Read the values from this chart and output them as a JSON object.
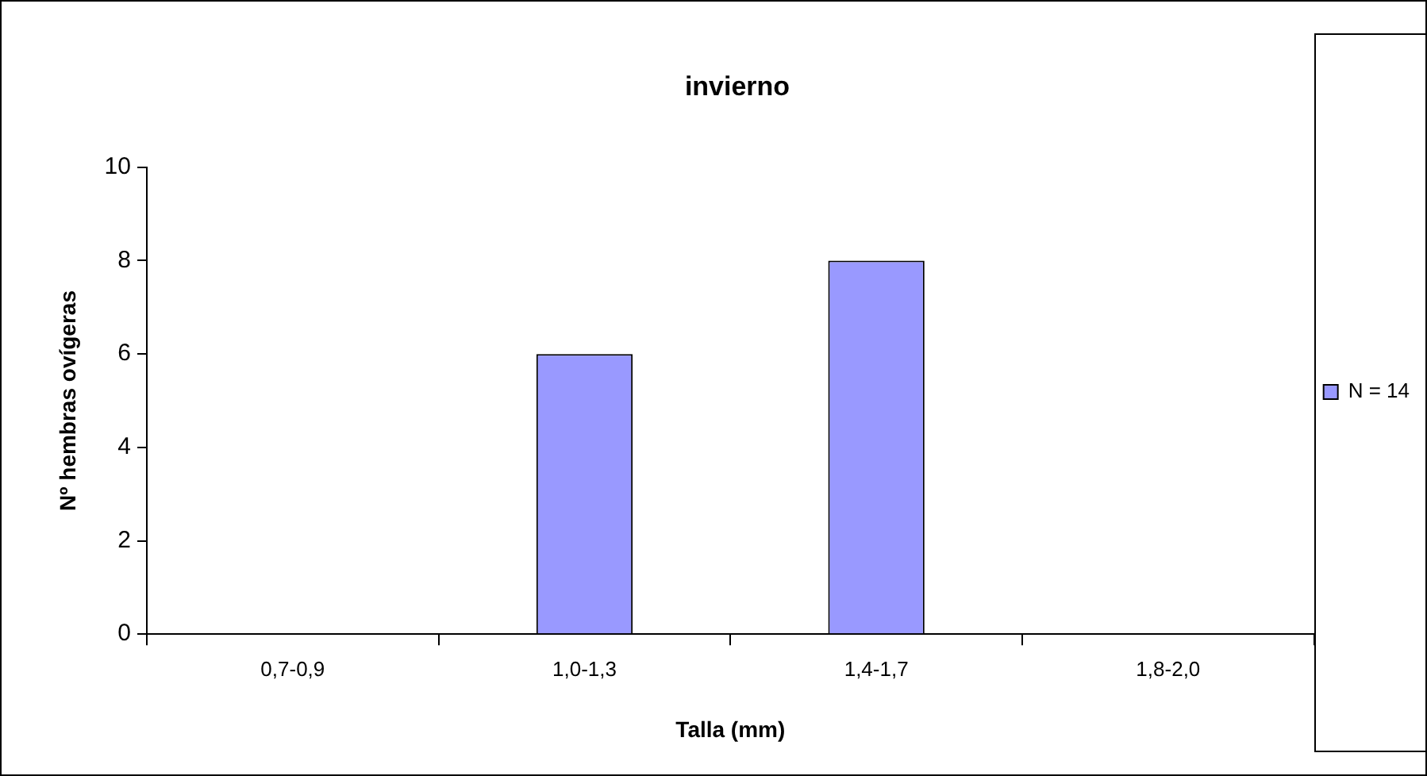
{
  "chart_data": {
    "type": "bar",
    "title": "invierno",
    "xlabel": "Talla (mm)",
    "ylabel": "Nº hembras ovígeras",
    "categories": [
      "0,7-0,9",
      "1,0-1,3",
      "1,4-1,7",
      "1,8-2,0"
    ],
    "series": [
      {
        "name": "N = 14",
        "color": "#9999ff",
        "values": [
          0,
          6,
          8,
          0
        ]
      }
    ],
    "ylim": [
      0,
      10
    ],
    "yticks": [
      0,
      2,
      4,
      6,
      8,
      10
    ],
    "grid": false,
    "legend": "right"
  }
}
